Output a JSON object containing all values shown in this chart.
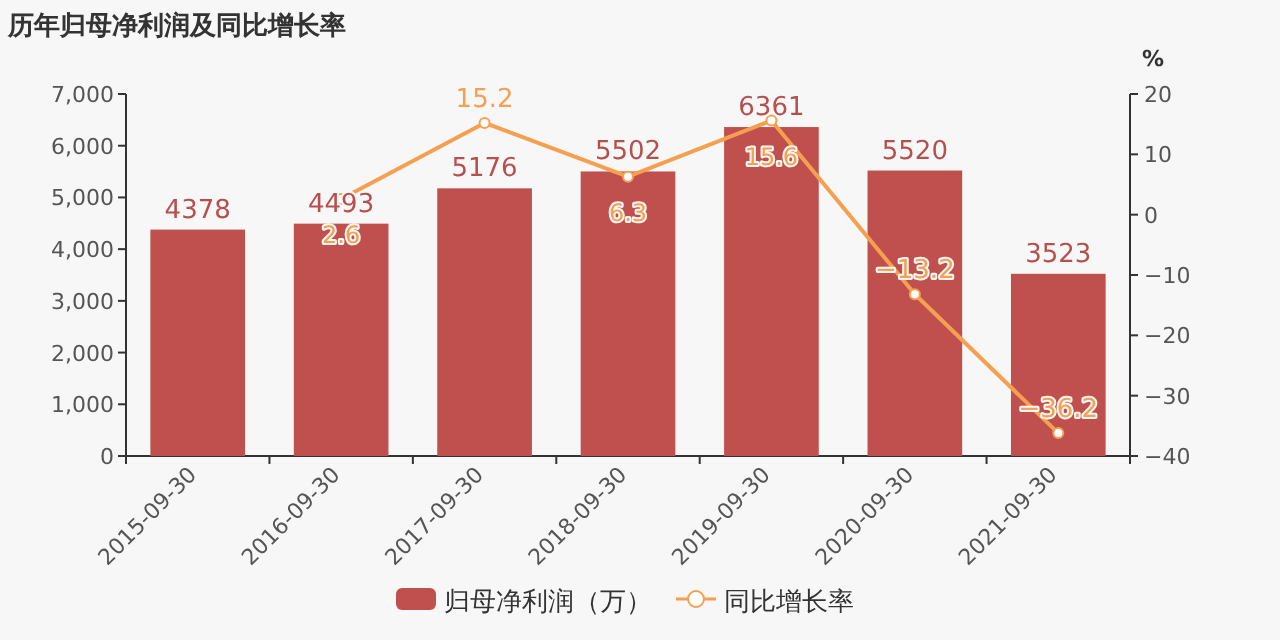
{
  "chart_data": {
    "type": "bar",
    "title": "历年归母净利润及同比增长率",
    "categories": [
      "2015-09-30",
      "2016-09-30",
      "2017-09-30",
      "2018-09-30",
      "2019-09-30",
      "2020-09-30",
      "2021-09-30"
    ],
    "series": [
      {
        "name": "归母净利润（万）",
        "color": "#c0504d",
        "values": [
          4378,
          4493,
          5176,
          5502,
          6361,
          5520,
          3523
        ]
      },
      {
        "name": "同比增长率",
        "type": "line",
        "axis": "y2",
        "color": "#f5a050",
        "marker": "circle",
        "values": [
          null,
          2.6,
          15.2,
          6.3,
          15.6,
          -13.2,
          -36.2
        ]
      }
    ],
    "ylim": [
      0,
      7000
    ],
    "yticks": [
      {
        "value": 0,
        "label": "0"
      },
      {
        "value": 1000,
        "label": "1,000"
      },
      {
        "value": 2000,
        "label": "2,000"
      },
      {
        "value": 3000,
        "label": "3,000"
      },
      {
        "value": 4000,
        "label": "4,000"
      },
      {
        "value": 5000,
        "label": "5,000"
      },
      {
        "value": 6000,
        "label": "6,000"
      },
      {
        "value": 7000,
        "label": "7,000"
      }
    ],
    "y2label": "%",
    "y2lim": [
      -40,
      20
    ],
    "y2ticks": [
      -40,
      -30,
      -20,
      -10,
      0,
      10,
      20
    ],
    "data_labels": true,
    "grid": false,
    "legend": "bottom"
  }
}
